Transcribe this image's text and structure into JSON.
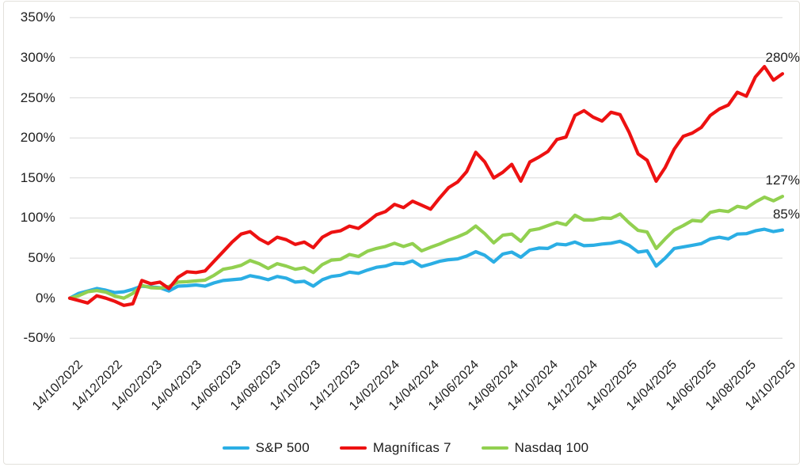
{
  "chart_data": {
    "type": "line",
    "title": "",
    "grid": "horizontal",
    "gridline_color": "#d9d9d9",
    "background_color": "#ffffff",
    "frame_border_color": "#e3e1db",
    "text_color": "#1d1d1d",
    "legend_position": "bottom",
    "y_axis": {
      "min": -50,
      "max": 350,
      "step": 50,
      "unit": "%",
      "tick_labels": [
        "350%",
        "300%",
        "250%",
        "200%",
        "150%",
        "100%",
        "50%",
        "0%",
        "-50%"
      ]
    },
    "x_axis": {
      "tick_labels": [
        "14/10/2022",
        "14/12/2022",
        "14/02/2023",
        "14/04/2023",
        "14/06/2023",
        "14/08/2023",
        "14/10/2023",
        "14/12/2023",
        "14/02/2024",
        "14/04/2024",
        "14/06/2024",
        "14/08/2024",
        "14/10/2024",
        "14/12/2024",
        "14/02/2025",
        "14/04/2025",
        "14/06/2025",
        "14/08/2025",
        "14/10/2025"
      ],
      "label_rotation_deg": -45
    },
    "legend_order": [
      "S&P 500",
      "Magníficas 7",
      "Nasdaq 100"
    ],
    "series": [
      {
        "name": "S&P 500",
        "color": "#2BAEE4",
        "end_label": "85%",
        "values": [
          0,
          6,
          9,
          12,
          10,
          7,
          8,
          11,
          15,
          14,
          13,
          9,
          15,
          15.5,
          16.5,
          15,
          19,
          22,
          23,
          24,
          28,
          26,
          23,
          27,
          25,
          20,
          21,
          15,
          23,
          27,
          28.5,
          32.5,
          31,
          35,
          38.5,
          40,
          43.5,
          43,
          46.5,
          39.5,
          42.5,
          46,
          48,
          49,
          52.5,
          58,
          53.5,
          45,
          55,
          57.5,
          51,
          60,
          62.5,
          62,
          67.5,
          66.5,
          70,
          65.5,
          66,
          67.5,
          68.5,
          71,
          66,
          57.5,
          59,
          40,
          50,
          62,
          64,
          66,
          68,
          74,
          76,
          74,
          80,
          80.5,
          84,
          86,
          83,
          85
        ]
      },
      {
        "name": "Nasdaq 100",
        "color": "#92D050",
        "end_label": "127%",
        "values": [
          0,
          3,
          8,
          9.5,
          7.5,
          2.5,
          0,
          6,
          16,
          13,
          12.5,
          14.5,
          20,
          20.5,
          21.5,
          22.5,
          28.5,
          36,
          38,
          41,
          47,
          43,
          37,
          43,
          40,
          36,
          38,
          32,
          42,
          47.5,
          48.5,
          54.5,
          52,
          58.5,
          62,
          64.5,
          68.5,
          64.5,
          68,
          59,
          63.5,
          67.5,
          72.5,
          76.5,
          81.5,
          90,
          80.5,
          69,
          78.5,
          80,
          71,
          84.5,
          86.5,
          90.5,
          94.5,
          91.5,
          103.5,
          97.5,
          97.5,
          100,
          99.5,
          105,
          94,
          84.5,
          82.5,
          62,
          74,
          85,
          90.5,
          97,
          96,
          107,
          109.5,
          108,
          114.5,
          112.5,
          120,
          126,
          121.5,
          127
        ]
      },
      {
        "name": "Magníficas 7",
        "color": "#ED1111",
        "end_label": "280%",
        "values": [
          0,
          -3,
          -6,
          3,
          0,
          -4,
          -9,
          -7,
          22,
          18,
          20,
          12,
          26,
          33,
          32,
          34,
          46,
          58,
          70,
          80,
          83,
          74,
          68,
          76,
          73,
          67,
          70,
          63,
          76,
          82,
          84,
          90,
          87,
          95,
          104,
          108,
          117,
          113,
          121,
          116,
          111,
          125,
          138,
          145,
          158,
          182,
          170,
          150,
          157,
          167,
          146,
          170,
          176,
          183,
          198,
          201,
          228,
          234,
          226,
          221,
          232,
          229,
          207,
          180,
          172,
          146,
          163,
          186,
          202,
          206,
          213,
          228,
          236,
          241,
          257,
          252,
          276,
          289,
          272,
          280
        ]
      }
    ]
  }
}
